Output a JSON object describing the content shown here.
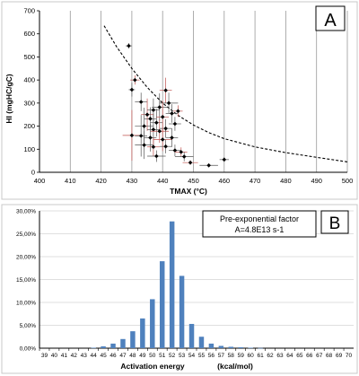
{
  "chart_data": [
    {
      "type": "scatter",
      "panel_label": "A",
      "xlabel": "TMAX (°C)",
      "ylabel": "HI (mgHC/gC)",
      "xlim": [
        400,
        500
      ],
      "ylim": [
        0,
        700
      ],
      "x_ticks": [
        "400",
        "410",
        "420",
        "430",
        "440",
        "450",
        "460",
        "470",
        "480",
        "490",
        "500"
      ],
      "y_ticks": [
        "0",
        "100",
        "200",
        "300",
        "400",
        "500",
        "600",
        "700"
      ],
      "grid": "vertical",
      "series": [
        {
          "points": [
            {
              "x": 429,
              "y": 548,
              "xerr": 1,
              "yerr": 12
            },
            {
              "x": 431,
              "y": 400,
              "xerr": 1.5,
              "yerr": 20
            },
            {
              "x": 430,
              "y": 358,
              "xerr": 1,
              "yerr": 30
            },
            {
              "x": 433,
              "y": 305,
              "xerr": 2,
              "yerr": 40
            },
            {
              "x": 435,
              "y": 250,
              "xerr": 2,
              "yerr": 70
            },
            {
              "x": 437,
              "y": 270,
              "xerr": 2,
              "yerr": 50
            },
            {
              "x": 439,
              "y": 282,
              "xerr": 2.5,
              "yerr": 60
            },
            {
              "x": 441,
              "y": 355,
              "xerr": 2,
              "yerr": 55
            },
            {
              "x": 442,
              "y": 300,
              "xerr": 3,
              "yerr": 45
            },
            {
              "x": 443,
              "y": 255,
              "xerr": 2,
              "yerr": 40
            },
            {
              "x": 445,
              "y": 265,
              "xerr": 1.5,
              "yerr": 25
            },
            {
              "x": 436,
              "y": 232,
              "xerr": 2,
              "yerr": 50
            },
            {
              "x": 438,
              "y": 215,
              "xerr": 2,
              "yerr": 60
            },
            {
              "x": 440,
              "y": 240,
              "xerr": 2,
              "yerr": 70
            },
            {
              "x": 434,
              "y": 200,
              "xerr": 3,
              "yerr": 80
            },
            {
              "x": 437,
              "y": 185,
              "xerr": 2,
              "yerr": 70
            },
            {
              "x": 439,
              "y": 178,
              "xerr": 3,
              "yerr": 50
            },
            {
              "x": 441,
              "y": 190,
              "xerr": 2,
              "yerr": 40
            },
            {
              "x": 444,
              "y": 210,
              "xerr": 2,
              "yerr": 30
            },
            {
              "x": 430,
              "y": 160,
              "xerr": 3,
              "yerr": 110
            },
            {
              "x": 433,
              "y": 158,
              "xerr": 2,
              "yerr": 90
            },
            {
              "x": 436,
              "y": 150,
              "xerr": 2,
              "yerr": 60
            },
            {
              "x": 440,
              "y": 142,
              "xerr": 3,
              "yerr": 50
            },
            {
              "x": 443,
              "y": 150,
              "xerr": 2,
              "yerr": 40
            },
            {
              "x": 434,
              "y": 118,
              "xerr": 3,
              "yerr": 60
            },
            {
              "x": 437,
              "y": 110,
              "xerr": 2,
              "yerr": 40
            },
            {
              "x": 441,
              "y": 112,
              "xerr": 2,
              "yerr": 30
            },
            {
              "x": 444,
              "y": 95,
              "xerr": 2,
              "yerr": 25
            },
            {
              "x": 446,
              "y": 88,
              "xerr": 2,
              "yerr": 20
            },
            {
              "x": 438,
              "y": 70,
              "xerr": 3,
              "yerr": 25
            },
            {
              "x": 447,
              "y": 68,
              "xerr": 3,
              "yerr": 20
            },
            {
              "x": 449,
              "y": 42,
              "xerr": 2.5,
              "yerr": 10
            },
            {
              "x": 455,
              "y": 30,
              "xerr": 3,
              "yerr": 8
            },
            {
              "x": 460,
              "y": 55,
              "xerr": 1.5,
              "yerr": 10
            }
          ]
        }
      ],
      "trend_curve": [
        {
          "x": 421,
          "y": 635
        },
        {
          "x": 425,
          "y": 545
        },
        {
          "x": 430,
          "y": 450
        },
        {
          "x": 435,
          "y": 368
        },
        {
          "x": 440,
          "y": 300
        },
        {
          "x": 445,
          "y": 247
        },
        {
          "x": 450,
          "y": 205
        },
        {
          "x": 455,
          "y": 172
        },
        {
          "x": 460,
          "y": 146
        },
        {
          "x": 470,
          "y": 110
        },
        {
          "x": 480,
          "y": 85
        },
        {
          "x": 490,
          "y": 65
        },
        {
          "x": 500,
          "y": 45
        }
      ]
    },
    {
      "type": "bar",
      "panel_label": "B",
      "annotation_line1": "Pre-exponential factor",
      "annotation_line2": "A=4.8E13 s-1",
      "xlabel": "Activation energy",
      "xunit": "(kcal/mol)",
      "ylim": [
        0,
        30
      ],
      "y_ticks": [
        "0,00%",
        "5,00%",
        "10,00%",
        "15,00%",
        "20,00%",
        "25,00%",
        "30,00%"
      ],
      "categories": [
        "39",
        "40",
        "41",
        "42",
        "43",
        "44",
        "45",
        "46",
        "47",
        "48",
        "49",
        "50",
        "51",
        "52",
        "53",
        "54",
        "55",
        "56",
        "57",
        "58",
        "59",
        "60",
        "61",
        "62",
        "63",
        "64",
        "65",
        "66",
        "67",
        "68",
        "69",
        "70"
      ],
      "values": [
        0,
        0,
        0,
        0,
        0,
        0.1,
        0.4,
        1.0,
        2.0,
        3.7,
        6.5,
        10.7,
        19.0,
        27.7,
        15.8,
        5.3,
        2.5,
        1.0,
        0.5,
        0.3,
        0.2,
        0.1,
        0.05,
        0,
        0,
        0,
        0,
        0,
        0,
        0,
        0,
        0
      ],
      "grid": "horizontal",
      "bar_color": "#4f81bd"
    }
  ]
}
